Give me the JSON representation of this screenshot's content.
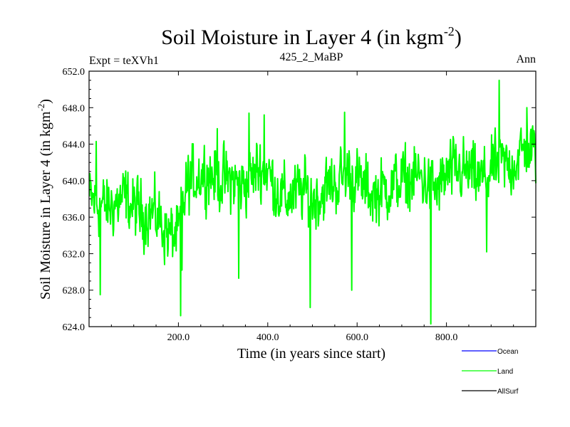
{
  "chart_data": {
    "type": "line",
    "title": "Soil Moisture in Layer 4 (in kgm",
    "title_sup": "-2",
    "title_close": ")",
    "subtitle_left": "Expt = teXVh1",
    "subtitle_center": "425_2_MaBP",
    "subtitle_right": "Ann",
    "xlabel": "Time (in years since start)",
    "ylabel": "Soil Moisture in Layer 4 (in kgm",
    "ylabel_sup": "-2",
    "ylabel_close": ")",
    "xlim": [
      0,
      1000
    ],
    "ylim": [
      624.0,
      652.0
    ],
    "x_ticks": [
      200,
      400,
      600,
      800
    ],
    "x_tick_labels": [
      "200.0",
      "400.0",
      "600.0",
      "800.0"
    ],
    "y_ticks": [
      624,
      628,
      632,
      636,
      640,
      644,
      648,
      652
    ],
    "y_tick_labels": [
      "624.0",
      "628.0",
      "632.0",
      "636.0",
      "640.0",
      "644.0",
      "648.0",
      "652.0"
    ],
    "legend": [
      {
        "name": "Ocean",
        "color": "#0000ff"
      },
      {
        "name": "Land",
        "color": "#00ff00"
      },
      {
        "name": "AllSurf",
        "color": "#000000"
      }
    ],
    "series": [
      {
        "name": "Land",
        "color": "#00ff00",
        "anchors": [
          [
            0,
            638
          ],
          [
            20,
            637.5
          ],
          [
            40,
            637
          ],
          [
            60,
            637.5
          ],
          [
            80,
            638
          ],
          [
            100,
            637
          ],
          [
            120,
            636.5
          ],
          [
            140,
            636.5
          ],
          [
            160,
            635.5
          ],
          [
            180,
            634
          ],
          [
            200,
            634
          ],
          [
            210,
            637
          ],
          [
            220,
            639.5
          ],
          [
            240,
            640.5
          ],
          [
            260,
            641
          ],
          [
            280,
            640.5
          ],
          [
            300,
            640
          ],
          [
            320,
            640
          ],
          [
            340,
            639.5
          ],
          [
            360,
            640
          ],
          [
            380,
            641.5
          ],
          [
            400,
            641
          ],
          [
            420,
            639
          ],
          [
            440,
            638
          ],
          [
            460,
            638.5
          ],
          [
            480,
            639
          ],
          [
            500,
            638
          ],
          [
            520,
            638.5
          ],
          [
            540,
            639.5
          ],
          [
            560,
            640
          ],
          [
            580,
            641
          ],
          [
            600,
            640
          ],
          [
            620,
            639
          ],
          [
            640,
            638.5
          ],
          [
            660,
            639
          ],
          [
            680,
            639.5
          ],
          [
            700,
            640
          ],
          [
            720,
            640
          ],
          [
            740,
            640.5
          ],
          [
            760,
            639.5
          ],
          [
            780,
            639
          ],
          [
            800,
            640.5
          ],
          [
            820,
            641
          ],
          [
            840,
            641
          ],
          [
            860,
            640.5
          ],
          [
            880,
            640
          ],
          [
            900,
            641
          ],
          [
            920,
            642
          ],
          [
            940,
            641.5
          ],
          [
            960,
            642.5
          ],
          [
            980,
            643.5
          ],
          [
            1000,
            643
          ]
        ],
        "spikes": [
          [
            16,
            644.3
          ],
          [
            25,
            627.5
          ],
          [
            205,
            625.2
          ],
          [
            208,
            630.2
          ],
          [
            287,
            645.7
          ],
          [
            335,
            629.3
          ],
          [
            358,
            647.4
          ],
          [
            392,
            647.2
          ],
          [
            495,
            626.1
          ],
          [
            572,
            647.5
          ],
          [
            588,
            628.0
          ],
          [
            765,
            624.3
          ],
          [
            890,
            632.2
          ],
          [
            918,
            651.0
          ],
          [
            980,
            648.0
          ]
        ]
      },
      {
        "name": "Ocean",
        "color": "#0000ff",
        "values": []
      },
      {
        "name": "AllSurf",
        "color": "#000000",
        "values": []
      }
    ]
  }
}
